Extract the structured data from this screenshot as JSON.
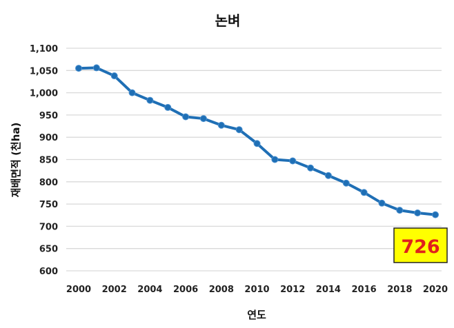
{
  "chart_data": {
    "type": "line",
    "title": "논벼",
    "xlabel": "연도",
    "ylabel": "재배면적 (천ha)",
    "ylim": [
      600,
      1100
    ],
    "yticks": [
      "600",
      "650",
      "700",
      "750",
      "800",
      "850",
      "900",
      "950",
      "1,000",
      "1,050",
      "1,100"
    ],
    "xticks": [
      "2000",
      "2002",
      "2004",
      "2006",
      "2008",
      "2010",
      "2012",
      "2014",
      "2016",
      "2018",
      "2020"
    ],
    "grid": true,
    "x": [
      2000,
      2001,
      2002,
      2003,
      2004,
      2005,
      2006,
      2007,
      2008,
      2009,
      2010,
      2011,
      2012,
      2013,
      2014,
      2015,
      2016,
      2017,
      2018,
      2019,
      2020
    ],
    "values": [
      1055,
      1056,
      1038,
      1000,
      983,
      967,
      946,
      942,
      927,
      917,
      886,
      850,
      847,
      831,
      814,
      797,
      776,
      752,
      736,
      730,
      726
    ],
    "line_color": "#1f6fb5",
    "annotation": {
      "text": "726",
      "bg": "#ffff00",
      "color": "#e0201c"
    }
  }
}
